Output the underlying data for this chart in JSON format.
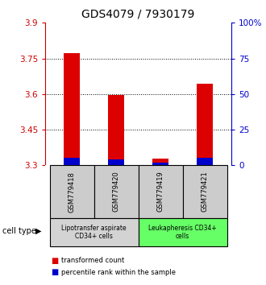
{
  "title": "GDS4079 / 7930179",
  "samples": [
    "GSM779418",
    "GSM779420",
    "GSM779419",
    "GSM779421"
  ],
  "transformed_counts": [
    3.771,
    3.596,
    3.327,
    3.645
  ],
  "percentile_pct": [
    5,
    4,
    2,
    5
  ],
  "ymin": 3.3,
  "ymax": 3.9,
  "yticks_left": [
    3.3,
    3.45,
    3.6,
    3.75,
    3.9
  ],
  "yticks_right": [
    0,
    25,
    50,
    75,
    100
  ],
  "yticks_right_labels": [
    "0",
    "25",
    "50",
    "75",
    "100%"
  ],
  "gridlines": [
    3.45,
    3.6,
    3.75
  ],
  "groups": [
    {
      "label": "Lipotransfer aspirate\nCD34+ cells",
      "start": 0,
      "end": 2,
      "color": "#d3d3d3"
    },
    {
      "label": "Leukapheresis CD34+\ncells",
      "start": 2,
      "end": 4,
      "color": "#66ff66"
    }
  ],
  "bar_color_red": "#dd0000",
  "bar_color_blue": "#0000cc",
  "bar_width": 0.35,
  "cell_type_label": "cell type",
  "legend_red": "transformed count",
  "legend_blue": "percentile rank within the sample",
  "bg_color": "#ffffff",
  "axis_left_color": "#cc0000",
  "axis_right_color": "#0000cc",
  "sample_bg_color": "#cccccc",
  "title_fontsize": 10,
  "tick_fontsize": 7.5,
  "sample_fontsize": 6
}
